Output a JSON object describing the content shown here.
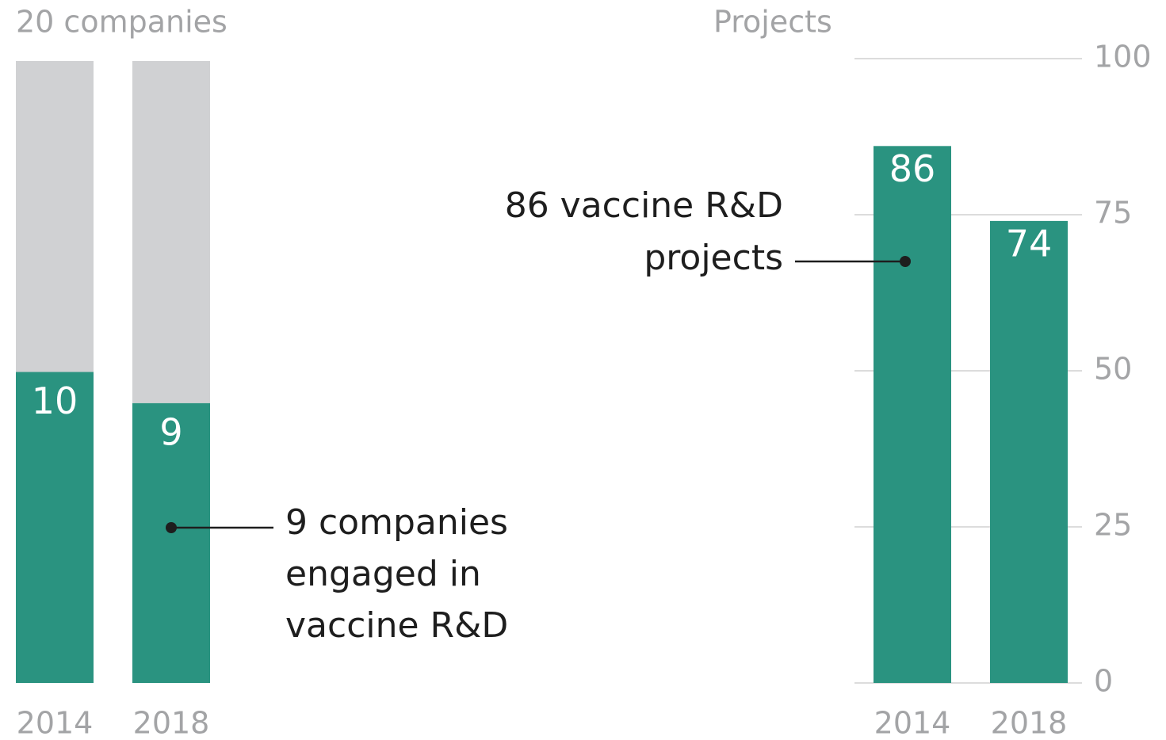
{
  "chart_data": [
    {
      "type": "bar",
      "stacked": true,
      "title": "20 companies",
      "categories": [
        "2014",
        "2018"
      ],
      "series": [
        {
          "color": "#2a9380",
          "values": [
            10,
            9
          ],
          "labels": true
        },
        {
          "color": "#d0d1d3",
          "values": [
            10,
            11
          ]
        }
      ],
      "ylim": [
        0,
        20
      ],
      "annotation": [
        "9 companies",
        "engaged in",
        "vaccine R&D"
      ]
    },
    {
      "type": "bar",
      "y_label": "Projects",
      "categories": [
        "2014",
        "2018"
      ],
      "values": [
        86,
        74
      ],
      "color": "#2a9380",
      "labels": true,
      "ylim": [
        0,
        100
      ],
      "yticks": [
        0,
        25,
        50,
        75,
        100
      ],
      "grid": true,
      "annotation": [
        "86 vaccine R&D",
        "projects"
      ]
    }
  ]
}
